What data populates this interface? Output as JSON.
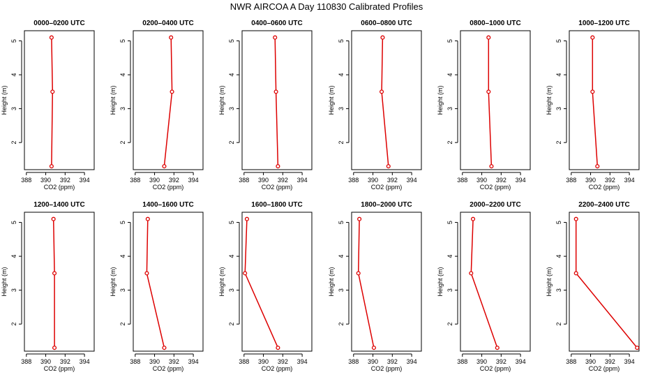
{
  "title": "NWR AIRCOA A  Day 110830  Calibrated Profiles",
  "colors": {
    "line": "#dd0000",
    "axis": "#000000",
    "background": "#ffffff"
  },
  "chart_data": [
    {
      "type": "line",
      "title": "0000–0200 UTC",
      "xlabel": "CO2 (ppm)",
      "ylabel": "Height (m)",
      "xlim": [
        387.8,
        395
      ],
      "ylim": [
        1.2,
        5.3
      ],
      "xticks": [
        388,
        390,
        392,
        394
      ],
      "yticks": [
        2,
        3,
        4,
        5
      ],
      "x": [
        390.6,
        390.7,
        390.6
      ],
      "y": [
        5.1,
        3.5,
        1.3
      ]
    },
    {
      "type": "line",
      "title": "0200–0400 UTC",
      "xlabel": "CO2 (ppm)",
      "ylabel": "Height (m)",
      "xlim": [
        387.8,
        395
      ],
      "ylim": [
        1.2,
        5.3
      ],
      "xticks": [
        388,
        390,
        392,
        394
      ],
      "yticks": [
        2,
        3,
        4,
        5
      ],
      "x": [
        391.7,
        391.8,
        391.0
      ],
      "y": [
        5.1,
        3.5,
        1.3
      ]
    },
    {
      "type": "line",
      "title": "0400–0600 UTC",
      "xlabel": "CO2 (ppm)",
      "ylabel": "Height (m)",
      "xlim": [
        387.8,
        395
      ],
      "ylim": [
        1.2,
        5.3
      ],
      "xticks": [
        388,
        390,
        392,
        394
      ],
      "yticks": [
        2,
        3,
        4,
        5
      ],
      "x": [
        391.2,
        391.3,
        391.5
      ],
      "y": [
        5.1,
        3.5,
        1.3
      ]
    },
    {
      "type": "line",
      "title": "0600–0800 UTC",
      "xlabel": "CO2 (ppm)",
      "ylabel": "Height (m)",
      "xlim": [
        387.8,
        395
      ],
      "ylim": [
        1.2,
        5.3
      ],
      "xticks": [
        388,
        390,
        392,
        394
      ],
      "yticks": [
        2,
        3,
        4,
        5
      ],
      "x": [
        391.0,
        390.9,
        391.6
      ],
      "y": [
        5.1,
        3.5,
        1.3
      ]
    },
    {
      "type": "line",
      "title": "0800–1000 UTC",
      "xlabel": "CO2 (ppm)",
      "ylabel": "Height (m)",
      "xlim": [
        387.8,
        395
      ],
      "ylim": [
        1.2,
        5.3
      ],
      "xticks": [
        388,
        390,
        392,
        394
      ],
      "yticks": [
        2,
        3,
        4,
        5
      ],
      "x": [
        390.7,
        390.7,
        391.0
      ],
      "y": [
        5.1,
        3.5,
        1.3
      ]
    },
    {
      "type": "line",
      "title": "1000–1200 UTC",
      "xlabel": "CO2 (ppm)",
      "ylabel": "Height (m)",
      "xlim": [
        387.8,
        395
      ],
      "ylim": [
        1.2,
        5.3
      ],
      "xticks": [
        388,
        390,
        392,
        394
      ],
      "yticks": [
        2,
        3,
        4,
        5
      ],
      "x": [
        390.2,
        390.2,
        390.7
      ],
      "y": [
        5.1,
        3.5,
        1.3
      ]
    },
    {
      "type": "line",
      "title": "1200–1400 UTC",
      "xlabel": "CO2 (ppm)",
      "ylabel": "Height (m)",
      "xlim": [
        387.8,
        395
      ],
      "ylim": [
        1.2,
        5.3
      ],
      "xticks": [
        388,
        390,
        392,
        394
      ],
      "yticks": [
        2,
        3,
        4,
        5
      ],
      "x": [
        390.8,
        390.9,
        390.9
      ],
      "y": [
        5.1,
        3.5,
        1.3
      ]
    },
    {
      "type": "line",
      "title": "1400–1600 UTC",
      "xlabel": "CO2 (ppm)",
      "ylabel": "Height (m)",
      "xlim": [
        387.8,
        395
      ],
      "ylim": [
        1.2,
        5.3
      ],
      "xticks": [
        388,
        390,
        392,
        394
      ],
      "yticks": [
        2,
        3,
        4,
        5
      ],
      "x": [
        389.3,
        389.2,
        391.0
      ],
      "y": [
        5.1,
        3.5,
        1.3
      ]
    },
    {
      "type": "line",
      "title": "1600–1800 UTC",
      "xlabel": "CO2 (ppm)",
      "ylabel": "Height (m)",
      "xlim": [
        387.8,
        395
      ],
      "ylim": [
        1.2,
        5.3
      ],
      "xticks": [
        388,
        390,
        392,
        394
      ],
      "yticks": [
        2,
        3,
        4,
        5
      ],
      "x": [
        388.3,
        388.1,
        391.5
      ],
      "y": [
        5.1,
        3.5,
        1.3
      ]
    },
    {
      "type": "line",
      "title": "1800–2000 UTC",
      "xlabel": "CO2 (ppm)",
      "ylabel": "Height (m)",
      "xlim": [
        387.8,
        395
      ],
      "ylim": [
        1.2,
        5.3
      ],
      "xticks": [
        388,
        390,
        392,
        394
      ],
      "yticks": [
        2,
        3,
        4,
        5
      ],
      "x": [
        388.6,
        388.5,
        390.1
      ],
      "y": [
        5.1,
        3.5,
        1.3
      ]
    },
    {
      "type": "line",
      "title": "2000–2200 UTC",
      "xlabel": "CO2 (ppm)",
      "ylabel": "Height (m)",
      "xlim": [
        387.8,
        395
      ],
      "ylim": [
        1.2,
        5.3
      ],
      "xticks": [
        388,
        390,
        392,
        394
      ],
      "yticks": [
        2,
        3,
        4,
        5
      ],
      "x": [
        389.1,
        388.9,
        391.6
      ],
      "y": [
        5.1,
        3.5,
        1.3
      ]
    },
    {
      "type": "line",
      "title": "2200–2400 UTC",
      "xlabel": "CO2 (ppm)",
      "ylabel": "Height (m)",
      "xlim": [
        387.8,
        395
      ],
      "ylim": [
        1.2,
        5.3
      ],
      "xticks": [
        388,
        390,
        392,
        394
      ],
      "yticks": [
        2,
        3,
        4,
        5
      ],
      "x": [
        388.5,
        388.5,
        394.8
      ],
      "y": [
        5.1,
        3.5,
        1.3
      ]
    }
  ]
}
